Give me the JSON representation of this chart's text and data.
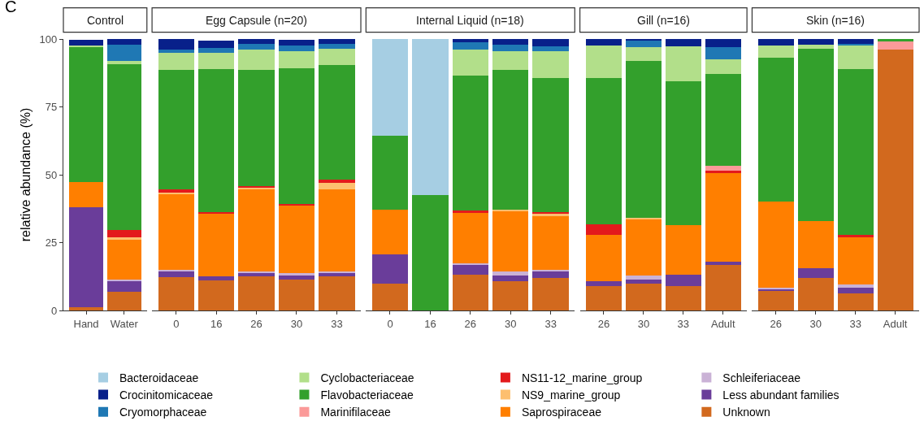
{
  "chart_data": [
    {
      "type": "bar",
      "stacked": true,
      "title": "Control",
      "ylabel": "relative abundance (%)",
      "annotations": [
        "C"
      ],
      "legend": "bottom",
      "ylim": [
        0,
        100
      ],
      "yticks": [
        0,
        25,
        50,
        75,
        100
      ],
      "categories": [
        "Hand",
        "Water"
      ],
      "series": [
        {
          "name": "Unknown",
          "color": "#d2691e",
          "values": [
            1.2,
            7.0
          ]
        },
        {
          "name": "Less abundant families",
          "color": "#6a3d9a",
          "values": [
            36.8,
            4.0
          ]
        },
        {
          "name": "Schleiferiaceae",
          "color": "#cab2d6",
          "values": [
            0,
            0.5
          ]
        },
        {
          "name": "Saprospiraceae",
          "color": "#ff7f00",
          "values": [
            9.4,
            14.5
          ]
        },
        {
          "name": "NS9_marine_group",
          "color": "#fdbf6f",
          "values": [
            0,
            1.0
          ]
        },
        {
          "name": "NS11-12_marine_group",
          "color": "#e31a1c",
          "values": [
            0,
            2.5
          ]
        },
        {
          "name": "Marinifilaceae",
          "color": "#fb9a99",
          "values": [
            0,
            0
          ]
        },
        {
          "name": "Flavobacteriaceae",
          "color": "#33a02c",
          "values": [
            49.5,
            61.2
          ]
        },
        {
          "name": "Cyclobacteriaceae",
          "color": "#b2df8a",
          "values": [
            0.8,
            1.3
          ]
        },
        {
          "name": "Cryomorphaceae",
          "color": "#1f78b4",
          "values": [
            null,
            5.9
          ]
        },
        {
          "name": "Crocinitomicaceae",
          "color": "#08208a",
          "values": [
            2.0,
            2.1
          ]
        },
        {
          "name": "Bacteroidaceae",
          "color": "#a6cee3",
          "values": [
            0,
            0
          ]
        }
      ]
    },
    {
      "type": "bar",
      "stacked": true,
      "title": "Egg Capsule (n=20)",
      "tick_labels": "x",
      "ylim": [
        0,
        100
      ],
      "categories": [
        "0",
        "16",
        "26",
        "30",
        "33"
      ],
      "series": [
        {
          "color": "#d2691e",
          "values": [
            12.2,
            11.2,
            12.5,
            11.5,
            12.7
          ]
        },
        {
          "color": "#6a3d9a",
          "values": [
            2.3,
            1.5,
            1.2,
            1.5,
            1.2
          ]
        },
        {
          "color": "#cab2d6",
          "values": [
            0.5,
            null,
            0.6,
            0.9,
            0.6
          ]
        },
        {
          "color": "#ff7f00",
          "values": [
            28.0,
            23.0,
            30.6,
            24.9,
            30.2
          ]
        },
        {
          "color": "#fdbf6f",
          "values": [
            0.5,
            null,
            0.4,
            null,
            2.4
          ]
        },
        {
          "color": "#e31a1c",
          "values": [
            1.0,
            0.5,
            0.4,
            0.4,
            1.0
          ]
        },
        {
          "color": "#fb9a99",
          "values": [
            0,
            0,
            0,
            0,
            0
          ]
        },
        {
          "color": "#33a02c",
          "values": [
            44.0,
            52.6,
            42.8,
            50.1,
            42.4
          ]
        },
        {
          "color": "#b2df8a",
          "values": [
            6.5,
            6.0,
            7.5,
            6.3,
            6.0
          ]
        },
        {
          "color": "#1f78b4",
          "values": [
            1.2,
            2.0,
            2.2,
            2.0,
            1.7
          ]
        },
        {
          "color": "#08208a",
          "values": [
            3.8,
            2.5,
            1.8,
            2.0,
            1.8
          ]
        },
        {
          "color": "#a6cee3",
          "values": [
            0,
            0,
            0,
            0,
            0
          ]
        }
      ]
    },
    {
      "type": "bar",
      "stacked": true,
      "title": "Internal Liquid (n=18)",
      "tick_labels": "x",
      "ylim": [
        0,
        100
      ],
      "categories": [
        "0",
        "16",
        "26",
        "30",
        "33"
      ],
      "series": [
        {
          "color": "#d2691e",
          "values": [
            10.0,
            0,
            13.2,
            10.9,
            12.0
          ]
        },
        {
          "color": "#6a3d9a",
          "values": [
            10.7,
            0,
            3.8,
            2.1,
            2.4
          ]
        },
        {
          "color": "#cab2d6",
          "values": [
            0,
            0,
            0.5,
            1.5,
            0.6
          ]
        },
        {
          "color": "#ff7f00",
          "values": [
            16.5,
            0,
            18.5,
            21.9,
            19.7
          ]
        },
        {
          "color": "#fdbf6f",
          "values": [
            0,
            0,
            0,
            0.8,
            1.0
          ]
        },
        {
          "color": "#e31a1c",
          "values": [
            0,
            0,
            0.8,
            0,
            0.5
          ]
        },
        {
          "color": "#fb9a99",
          "values": [
            0,
            0,
            0,
            0,
            0
          ]
        },
        {
          "color": "#33a02c",
          "values": [
            27.3,
            42.4,
            49.7,
            51.5,
            49.5
          ]
        },
        {
          "color": "#b2df8a",
          "values": [
            0,
            0,
            9.7,
            6.8,
            9.7
          ]
        },
        {
          "color": "#1f78b4",
          "values": [
            0,
            0,
            2.5,
            2.5,
            1.8
          ]
        },
        {
          "color": "#08208a",
          "values": [
            0,
            0,
            1.3,
            2.0,
            2.8
          ]
        },
        {
          "color": "#a6cee3",
          "values": [
            35.5,
            57.6,
            0,
            0,
            0
          ]
        }
      ]
    },
    {
      "type": "bar",
      "stacked": true,
      "title": "Gill (n=16)",
      "tick_labels": "x",
      "ylim": [
        0,
        100
      ],
      "categories": [
        "26",
        "30",
        "33",
        "Adult"
      ],
      "series": [
        {
          "color": "#d2691e",
          "values": [
            8.9,
            9.9,
            8.9,
            16.7
          ]
        },
        {
          "color": "#6a3d9a",
          "values": [
            2.0,
            1.5,
            4.3,
            1.3
          ]
        },
        {
          "color": "#cab2d6",
          "values": [
            0,
            1.5,
            0,
            0
          ]
        },
        {
          "color": "#ff7f00",
          "values": [
            16.8,
            20.8,
            18.2,
            32.7
          ]
        },
        {
          "color": "#fdbf6f",
          "values": [
            0,
            0.3,
            0,
            0
          ]
        },
        {
          "color": "#e31a1c",
          "values": [
            4.0,
            0,
            0,
            0.7
          ]
        },
        {
          "color": "#fb9a99",
          "values": [
            0,
            0,
            0,
            2.0
          ]
        },
        {
          "color": "#33a02c",
          "values": [
            53.8,
            58.0,
            53.0,
            33.6
          ]
        },
        {
          "color": "#b2df8a",
          "values": [
            12.0,
            4.9,
            12.8,
            5.5
          ]
        },
        {
          "color": "#1f78b4",
          "values": [
            0,
            2.6,
            0,
            4.4
          ]
        },
        {
          "color": "#08208a",
          "values": [
            2.5,
            0.5,
            2.8,
            3.1
          ]
        },
        {
          "color": "#a6cee3",
          "values": [
            0,
            0,
            0,
            0
          ]
        }
      ]
    },
    {
      "type": "bar",
      "stacked": true,
      "title": "Skin (n=16)",
      "tick_labels": "x",
      "ylim": [
        0,
        100
      ],
      "categories": [
        "26",
        "30",
        "33",
        "Adult"
      ],
      "series": [
        {
          "color": "#d2691e",
          "values": [
            7.2,
            11.9,
            6.4,
            96.0
          ]
        },
        {
          "color": "#6a3d9a",
          "values": [
            0.7,
            3.8,
            2.1,
            0
          ]
        },
        {
          "color": "#cab2d6",
          "values": [
            0.6,
            0,
            1.2,
            0
          ]
        },
        {
          "color": "#ff7f00",
          "values": [
            31.7,
            17.2,
            17.3,
            0
          ]
        },
        {
          "color": "#fdbf6f",
          "values": [
            0,
            0,
            0,
            0
          ]
        },
        {
          "color": "#e31a1c",
          "values": [
            0,
            0,
            0.7,
            0
          ]
        },
        {
          "color": "#fb9a99",
          "values": [
            0,
            0,
            0,
            3.2
          ]
        },
        {
          "color": "#33a02c",
          "values": [
            53.0,
            63.6,
            61.2,
            0.8
          ]
        },
        {
          "color": "#b2df8a",
          "values": [
            4.5,
            1.4,
            9.0,
            0
          ]
        },
        {
          "color": "#1f78b4",
          "values": [
            0,
            0,
            0.3,
            0
          ]
        },
        {
          "color": "#08208a",
          "values": [
            2.3,
            2.1,
            1.8,
            0
          ]
        },
        {
          "color": "#a6cee3",
          "values": [
            0,
            0,
            0,
            0
          ]
        }
      ]
    }
  ]
}
